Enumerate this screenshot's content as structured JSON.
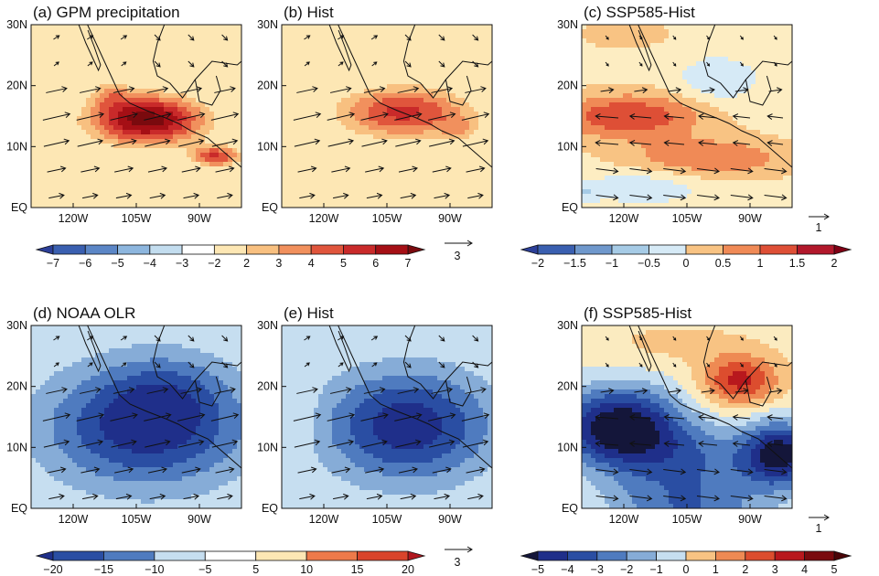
{
  "panels": [
    {
      "id": "a",
      "title": "(a) GPM precipitation",
      "field": "precip_obs",
      "palette": "rb",
      "levels": [
        -7,
        -6,
        -5,
        -4,
        -3,
        -2,
        2,
        3,
        4,
        5,
        6,
        7
      ],
      "lat_ticks": [
        "30N",
        "20N",
        "10N",
        "EQ"
      ],
      "lon_ticks": [
        "120W",
        "105W",
        "90W"
      ]
    },
    {
      "id": "b",
      "title": "(b) Hist",
      "field": "precip_hist",
      "palette": "rb",
      "levels": [
        -7,
        -6,
        -5,
        -4,
        -3,
        -2,
        2,
        3,
        4,
        5,
        6,
        7
      ],
      "lat_ticks": [
        "30N",
        "20N",
        "10N",
        "EQ"
      ],
      "lon_ticks": [
        "120W",
        "105W",
        "90W"
      ]
    },
    {
      "id": "c",
      "title": "(c) SSP585-Hist",
      "field": "precip_diff",
      "palette": "rb2",
      "levels": [
        -2,
        -1.5,
        -1,
        -0.5,
        0,
        0.5,
        1,
        1.5,
        2
      ],
      "lat_ticks": [
        "30N",
        "20N",
        "10N",
        "EQ"
      ],
      "lon_ticks": [
        "120W",
        "105W",
        "90W"
      ],
      "ref_vector": "1"
    },
    {
      "id": "d",
      "title": "(d) NOAA OLR",
      "field": "olr_obs",
      "palette": "olr",
      "levels": [
        -20,
        -15,
        -10,
        -5,
        5,
        10,
        15,
        20
      ],
      "lat_ticks": [
        "30N",
        "20N",
        "10N",
        "EQ"
      ],
      "lon_ticks": [
        "120W",
        "105W",
        "90W"
      ]
    },
    {
      "id": "e",
      "title": "(e) Hist",
      "field": "olr_hist",
      "palette": "olr",
      "levels": [
        -20,
        -15,
        -10,
        -5,
        5,
        10,
        15,
        20
      ],
      "lat_ticks": [
        "30N",
        "20N",
        "10N",
        "EQ"
      ],
      "lon_ticks": [
        "120W",
        "105W",
        "90W"
      ]
    },
    {
      "id": "f",
      "title": "(f) SSP585-Hist",
      "field": "olr_diff",
      "palette": "diff5",
      "levels": [
        -5,
        -4,
        -3,
        -2,
        -1,
        0,
        1,
        2,
        3,
        4,
        5
      ],
      "lat_ticks": [
        "30N",
        "20N",
        "10N",
        "EQ"
      ],
      "lon_ticks": [
        "120W",
        "105W",
        "90W"
      ],
      "ref_vector": "1"
    }
  ],
  "colorbars": [
    {
      "id": "cb1",
      "labels": [
        "−7",
        "−6",
        "−5",
        "−4",
        "−3",
        "−2",
        "2",
        "3",
        "4",
        "5",
        "6",
        "7"
      ],
      "ref_vector": "3"
    },
    {
      "id": "cb2",
      "labels": [
        "−2",
        "−1.5",
        "−1",
        "−0.5",
        "0",
        "0.5",
        "1",
        "1.5",
        "2"
      ]
    },
    {
      "id": "cb3",
      "labels": [
        "−20",
        "−15",
        "−10",
        "−5",
        "5",
        "10",
        "15",
        "20"
      ],
      "ref_vector": "3"
    },
    {
      "id": "cb4",
      "labels": [
        "−5",
        "−4",
        "−3",
        "−2",
        "−1",
        "0",
        "1",
        "2",
        "3",
        "4",
        "5"
      ]
    }
  ],
  "palettes": {
    "rb": [
      "#2c3f98",
      "#3a5fb0",
      "#5b86c6",
      "#8db6de",
      "#c3ddef",
      "#ffffff",
      "#fde7b4",
      "#f8c080",
      "#f1905d",
      "#e0553c",
      "#c92a2a",
      "#a50f15",
      "#7a0a0e"
    ],
    "rb2": [
      "#2c3f98",
      "#3a5fb0",
      "#6f98cc",
      "#a6cbe6",
      "#d6eaf6",
      "#fdedc2",
      "#f8c383",
      "#f08a56",
      "#de4f36",
      "#b2182b",
      "#800015"
    ],
    "olr": [
      "#1f2f8a",
      "#2a4ea3",
      "#4f7bbf",
      "#86acd7",
      "#c6def0",
      "#ffffff",
      "#fde7b4",
      "#f6b073",
      "#ed7a4a",
      "#d9442b",
      "#b0171e"
    ],
    "diff5": [
      "#14163a",
      "#1f2f8a",
      "#2a4ea3",
      "#4f7bbf",
      "#86acd7",
      "#c6def0",
      "#fbebc0",
      "#f8c383",
      "#ee8a53",
      "#dc4d2e",
      "#b8181d",
      "#7a0a0e",
      "#4a0508"
    ]
  },
  "chart_data": [
    {
      "type": "heatmap",
      "title": "(a) GPM precipitation",
      "x_range": [
        "130W",
        "80W"
      ],
      "y_range": [
        "EQ",
        "30N"
      ],
      "max_region": {
        "lon": "108W",
        "lat": "13N",
        "value": 7
      },
      "units_vector_ref": "3"
    },
    {
      "type": "heatmap",
      "title": "(b) Hist",
      "max_region": {
        "lon": "106W",
        "lat": "14N",
        "value": 5
      }
    },
    {
      "type": "heatmap",
      "title": "(c) SSP585-Hist",
      "max_region": {
        "lon": "120W",
        "lat": "12N",
        "value": 1.5
      },
      "vector_ref": "1"
    },
    {
      "type": "heatmap",
      "title": "(d) NOAA OLR",
      "min_region": {
        "lon": "105W",
        "lat": "12N",
        "value": -20
      }
    },
    {
      "type": "heatmap",
      "title": "(e) Hist",
      "min_region": {
        "lon": "103W",
        "lat": "12N",
        "value": -20
      }
    },
    {
      "type": "heatmap",
      "title": "(f) SSP585-Hist",
      "min_region": {
        "lon": "122W",
        "lat": "13N",
        "value": -5
      },
      "vector_ref": "1"
    }
  ]
}
